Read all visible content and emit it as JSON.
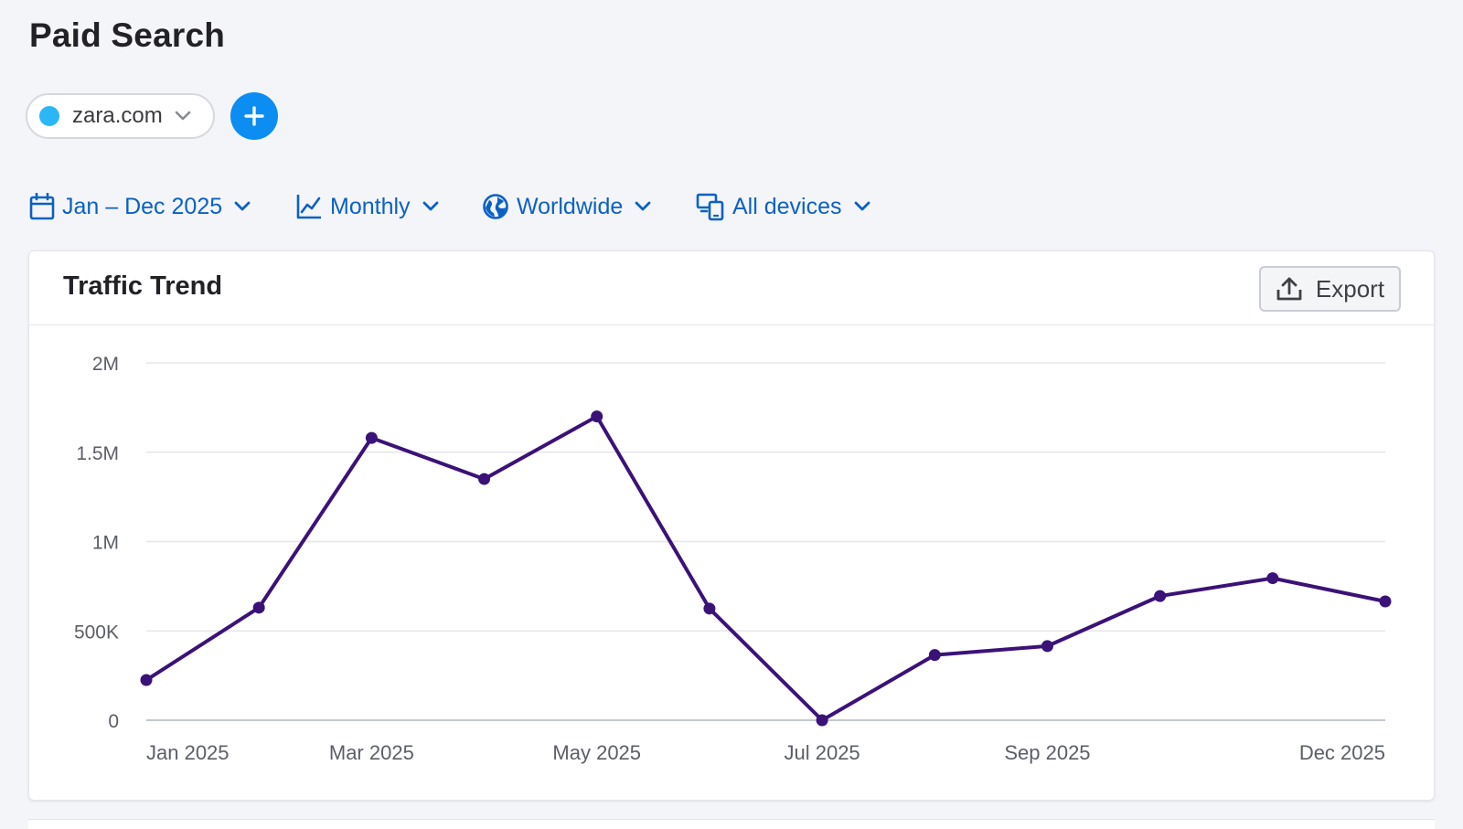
{
  "page": {
    "title": "Paid Search"
  },
  "domain_selector": {
    "domain": "zara.com",
    "dot_color": "#2bb7f5",
    "icon": "chevron-down-icon"
  },
  "add_button": {
    "icon": "plus-icon",
    "color": "#0b8df2"
  },
  "filters": {
    "date_range": {
      "label": "Jan – Dec 2025",
      "icon": "calendar-icon"
    },
    "granularity": {
      "label": "Monthly",
      "icon": "line-chart-icon"
    },
    "location": {
      "label": "Worldwide",
      "icon": "globe-icon"
    },
    "devices": {
      "label": "All devices",
      "icon": "devices-icon"
    },
    "color": "#0a61c4"
  },
  "card": {
    "title": "Traffic Trend",
    "export_label": "Export",
    "export_icon": "upload-icon"
  },
  "chart_data": {
    "type": "line",
    "title": "",
    "xlabel": "",
    "ylabel": "",
    "x": [
      "Jan 2025",
      "Feb 2025",
      "Mar 2025",
      "Apr 2025",
      "May 2025",
      "Jun 2025",
      "Jul 2025",
      "Aug 2025",
      "Sep 2025",
      "Oct 2025",
      "Nov 2025",
      "Dec 2025"
    ],
    "x_tick_labels": [
      "Jan 2025",
      "Mar 2025",
      "May 2025",
      "Jul 2025",
      "Sep 2025",
      "Dec 2025"
    ],
    "series": [
      {
        "color": "#3b1278",
        "values": [
          225000,
          630000,
          1580000,
          1350000,
          1700000,
          625000,
          0,
          365000,
          415000,
          695000,
          795000,
          665000
        ]
      }
    ],
    "y_ticks": [
      0,
      500000,
      1000000,
      1500000,
      2000000
    ],
    "y_tick_labels": [
      "0",
      "500K",
      "1M",
      "1.5M",
      "2M"
    ],
    "ylim": [
      0,
      2000000
    ],
    "grid": true,
    "legend": "none"
  }
}
